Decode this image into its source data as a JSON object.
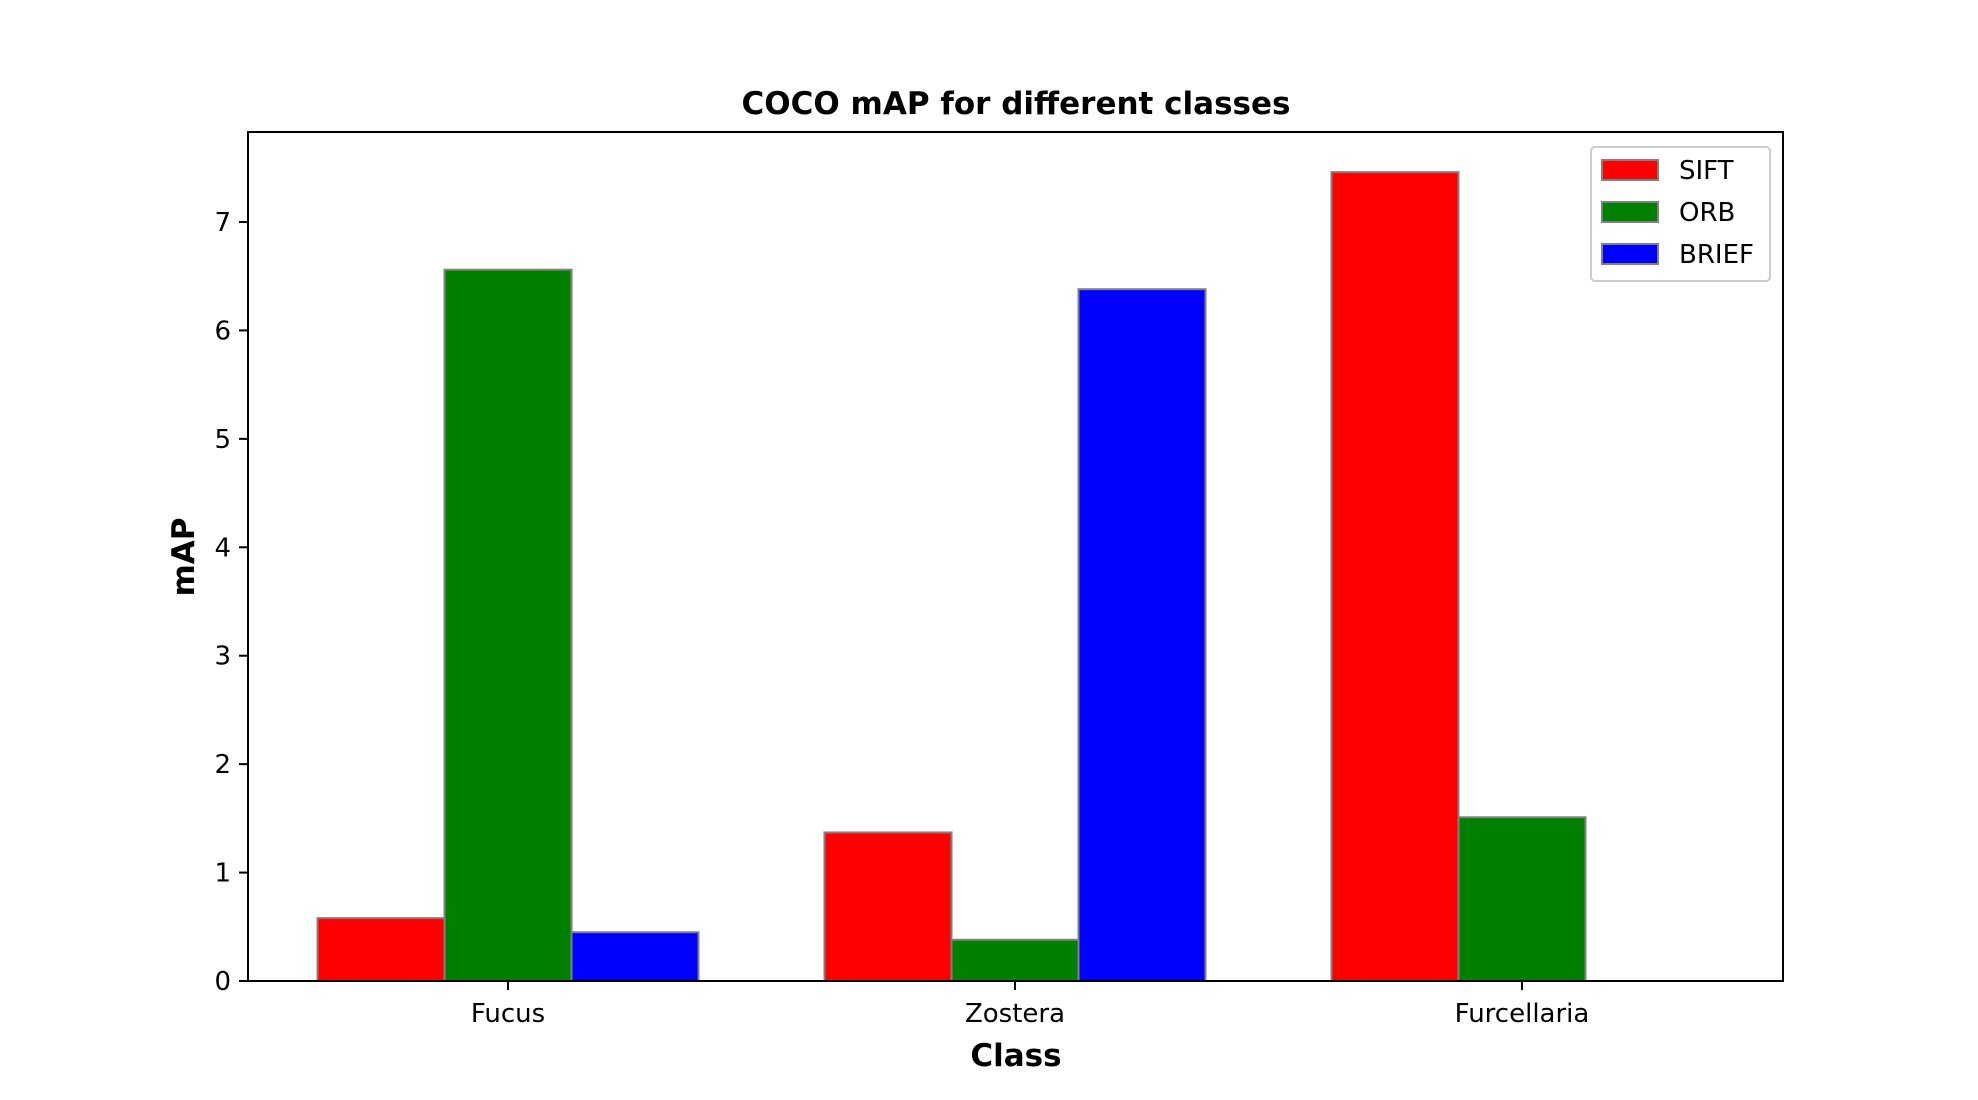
{
  "chart_data": {
    "type": "bar",
    "title": "COCO mAP for different classes",
    "xlabel": "Class",
    "ylabel": "mAP",
    "categories": [
      "Fucus",
      "Zostera",
      "Furcellaria"
    ],
    "series": [
      {
        "name": "SIFT",
        "color": "#ff0000",
        "values": [
          0.58,
          1.37,
          7.46
        ]
      },
      {
        "name": "ORB",
        "color": "#008000",
        "values": [
          6.56,
          0.38,
          1.51
        ]
      },
      {
        "name": "BRIEF",
        "color": "#0000ff",
        "values": [
          0.45,
          6.38,
          0
        ]
      }
    ],
    "ylim": [
      0,
      7.83
    ],
    "yticks": [
      0,
      1,
      2,
      3,
      4,
      5,
      6,
      7
    ],
    "legend_position": "top-right",
    "grid": false,
    "bar_edge_color": "#808080"
  }
}
